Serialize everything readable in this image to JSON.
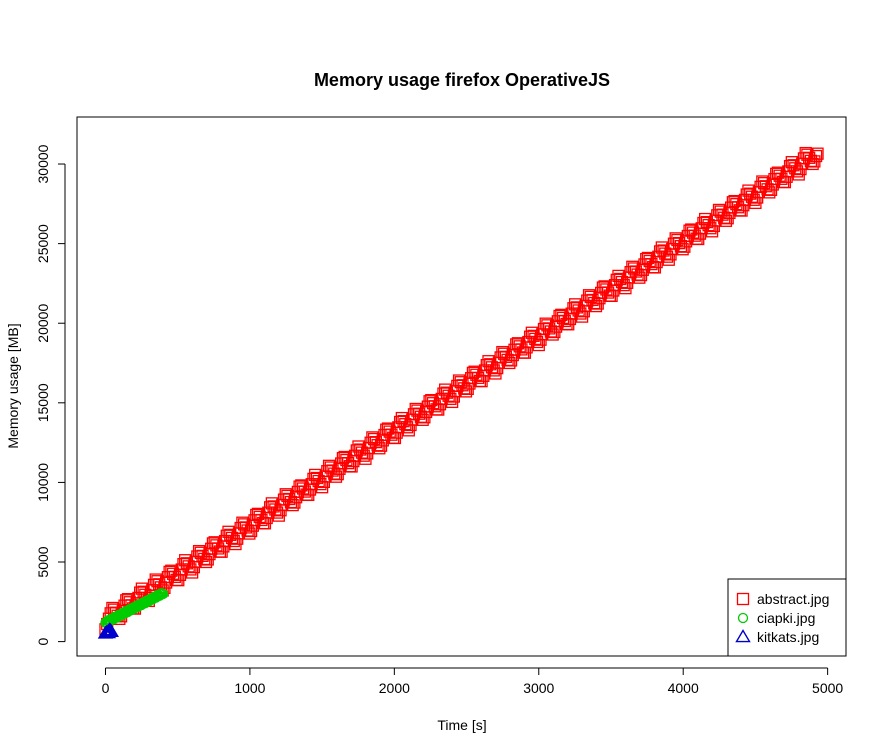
{
  "chart_data": {
    "type": "scatter",
    "title": "Memory usage firefox OperativeJS",
    "xlabel": "Time [s]",
    "ylabel": "Memory usage [MB]",
    "xlim": [
      0,
      5000
    ],
    "ylim": [
      0,
      32000
    ],
    "x_ticks": [
      0,
      1000,
      2000,
      3000,
      4000,
      5000
    ],
    "y_ticks": [
      0,
      5000,
      10000,
      15000,
      20000,
      25000,
      30000
    ],
    "x_tick_labels": [
      "0",
      "1000",
      "2000",
      "3000",
      "4000",
      "5000"
    ],
    "y_tick_labels": [
      "0",
      "5000",
      "10000",
      "15000",
      "20000",
      "25000",
      "30000"
    ],
    "grid": false,
    "legend_position": "bottom-right",
    "series": [
      {
        "name": "abstract.jpg",
        "color": "#ff0000",
        "marker": "square",
        "pattern": {
          "x_start": 0,
          "x_end": 4930,
          "x_step": 12,
          "y_base_start": 1100,
          "y_base_end": 30450,
          "cycle_period_s": 100,
          "cycle_amplitude": 1100,
          "final_y": 30650
        }
      },
      {
        "name": "ciapki.jpg",
        "color": "#00cc00",
        "marker": "circle",
        "pattern": {
          "x_start": 0,
          "x_end": 400,
          "x_step": 5,
          "y_start": 1200,
          "y_end": 3050
        }
      },
      {
        "name": "kitkats.jpg",
        "color": "#0000cc",
        "marker": "triangle",
        "points": [
          [
            0,
            520
          ],
          [
            5,
            550
          ],
          [
            10,
            560
          ],
          [
            15,
            580
          ],
          [
            20,
            620
          ],
          [
            25,
            680
          ],
          [
            30,
            720
          ],
          [
            35,
            680
          ],
          [
            40,
            620
          ],
          [
            20,
            540
          ]
        ]
      }
    ]
  }
}
